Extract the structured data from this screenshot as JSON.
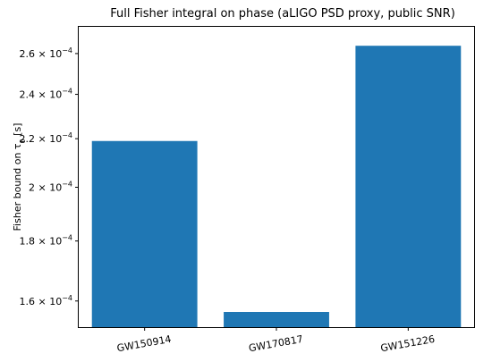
{
  "chart_data": {
    "type": "bar",
    "title": "Full Fisher integral on phase (aLIGO PSD proxy, public SNR)",
    "xlabel": "",
    "ylabel": "Fisher bound on τ",
    "ylabel_subscript": "0",
    "ylabel_unit": " [s]",
    "y_scale": "log",
    "ylim": [
      0.000152,
      0.000274
    ],
    "categories": [
      "GW150914",
      "GW170817",
      "GW151226"
    ],
    "x_tick_rotation_deg": -10,
    "values": [
      0.000219,
      0.0001566,
      0.000264
    ],
    "bar_color": "#1f77b4",
    "y_ticks": [
      {
        "value": 0.00016,
        "mantissa": "1.6",
        "exponent": "−4"
      },
      {
        "value": 0.00018,
        "mantissa": "1.8",
        "exponent": "−4"
      },
      {
        "value": 0.0002,
        "mantissa": "2",
        "exponent": "−4"
      },
      {
        "value": 0.00022,
        "mantissa": "2.2",
        "exponent": "−4"
      },
      {
        "value": 0.00024,
        "mantissa": "2.4",
        "exponent": "−4"
      },
      {
        "value": 0.00026,
        "mantissa": "2.6",
        "exponent": "−4"
      }
    ],
    "tick_times_symbol": "×",
    "tick_base": "10",
    "grid": false,
    "legend": "none"
  }
}
